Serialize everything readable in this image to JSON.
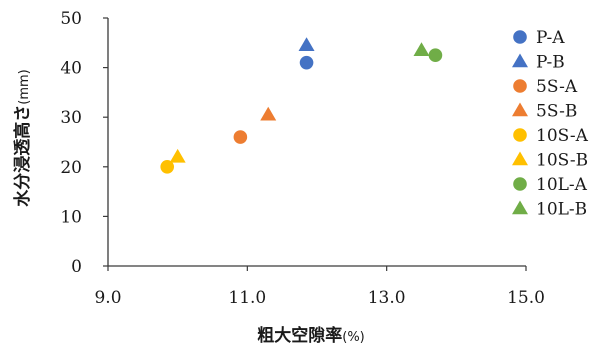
{
  "chart_data": {
    "type": "scatter",
    "xlabel": "粗大空隙率",
    "xlabel_unit": "(%)",
    "ylabel": "水分浸透高さ",
    "ylabel_unit": "(mm)",
    "xlim": [
      9.0,
      15.0
    ],
    "ylim": [
      0,
      50
    ],
    "xticks": [
      9.0,
      11.0,
      13.0,
      15.0
    ],
    "xtick_labels": [
      "9.0",
      "11.0",
      "13.0",
      "15.0"
    ],
    "yticks": [
      0,
      10,
      20,
      30,
      40,
      50
    ],
    "ytick_labels": [
      "0",
      "10",
      "20",
      "30",
      "40",
      "50"
    ],
    "grid": false,
    "legend_position": "right",
    "series": [
      {
        "name": "P-A",
        "marker": "circle",
        "color": "#4472C4",
        "x": [
          11.85
        ],
        "y": [
          41
        ]
      },
      {
        "name": "P-B",
        "marker": "triangle",
        "color": "#4472C4",
        "x": [
          11.85
        ],
        "y": [
          44.5
        ]
      },
      {
        "name": "5S-A",
        "marker": "circle",
        "color": "#ED7D31",
        "x": [
          10.9
        ],
        "y": [
          26
        ]
      },
      {
        "name": "5S-B",
        "marker": "triangle",
        "color": "#ED7D31",
        "x": [
          11.3
        ],
        "y": [
          30.5
        ]
      },
      {
        "name": "10S-A",
        "marker": "circle",
        "color": "#FFC000",
        "x": [
          9.85
        ],
        "y": [
          20
        ]
      },
      {
        "name": "10S-B",
        "marker": "triangle",
        "color": "#FFC000",
        "x": [
          10.0
        ],
        "y": [
          22
        ]
      },
      {
        "name": "10L-A",
        "marker": "circle",
        "color": "#70AD47",
        "x": [
          13.7
        ],
        "y": [
          42.5
        ]
      },
      {
        "name": "10L-B",
        "marker": "triangle",
        "color": "#70AD47",
        "x": [
          13.5
        ],
        "y": [
          43.5
        ]
      }
    ]
  }
}
